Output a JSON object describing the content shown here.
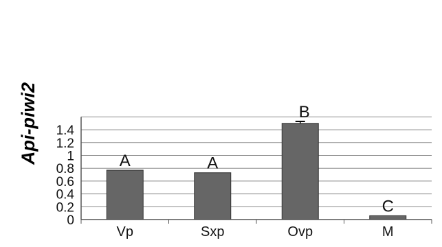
{
  "chart_data": {
    "type": "bar",
    "ylabel": "Api-piwi2",
    "categories": [
      "Vp",
      "Sxp",
      "Ovp",
      "M"
    ],
    "values": [
      0.77,
      0.73,
      1.5,
      0.06
    ],
    "bar_labels": [
      "A",
      "A",
      "B",
      "C"
    ],
    "error_bars": [
      null,
      null,
      0.03,
      null
    ],
    "ylim": [
      0,
      1.6
    ],
    "y_ticks": [
      "0",
      "0.2",
      "0.4",
      "0.6",
      "0.8",
      "1",
      "1.2",
      "1.4"
    ],
    "grid": true,
    "legend": "none",
    "colors": {
      "bar_fill": "#666666",
      "bar_stroke": "#333333",
      "grid": "#888888",
      "axis": "#555555"
    }
  }
}
